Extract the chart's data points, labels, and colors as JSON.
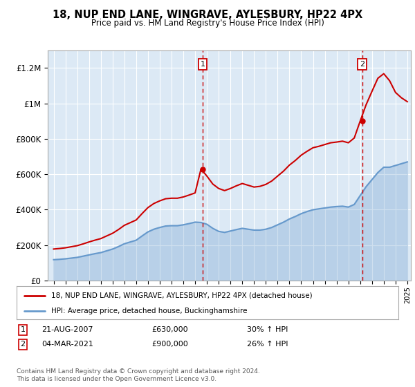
{
  "title": "18, NUP END LANE, WINGRAVE, AYLESBURY, HP22 4PX",
  "subtitle": "Price paid vs. HM Land Registry's House Price Index (HPI)",
  "x_start_year": 1995,
  "x_end_year": 2025,
  "y_min": 0,
  "y_max": 1300000,
  "y_ticks": [
    0,
    200000,
    400000,
    600000,
    800000,
    1000000,
    1200000
  ],
  "y_tick_labels": [
    "£0",
    "£200K",
    "£400K",
    "£600K",
    "£800K",
    "£1M",
    "£1.2M"
  ],
  "background_color": "#dce9f5",
  "grid_color": "#ffffff",
  "sale1_date": 2007.64,
  "sale1_price": 630000,
  "sale2_date": 2021.17,
  "sale2_price": 900000,
  "sale1_label": "1",
  "sale2_label": "2",
  "vline_color": "#cc0000",
  "red_line_color": "#cc0000",
  "blue_line_color": "#6699cc",
  "blue_fill_color": "#6699cc",
  "legend1_label": "18, NUP END LANE, WINGRAVE, AYLESBURY, HP22 4PX (detached house)",
  "legend2_label": "HPI: Average price, detached house, Buckinghamshire",
  "footer": "Contains HM Land Registry data © Crown copyright and database right 2024.\nThis data is licensed under the Open Government Licence v3.0.",
  "hpi_years": [
    1995,
    1995.5,
    1996,
    1996.5,
    1997,
    1997.5,
    1998,
    1998.5,
    1999,
    1999.5,
    2000,
    2000.5,
    2001,
    2001.5,
    2002,
    2002.5,
    2003,
    2003.5,
    2004,
    2004.5,
    2005,
    2005.5,
    2006,
    2006.5,
    2007,
    2007.5,
    2008,
    2008.5,
    2009,
    2009.5,
    2010,
    2010.5,
    2011,
    2011.5,
    2012,
    2012.5,
    2013,
    2013.5,
    2014,
    2014.5,
    2015,
    2015.5,
    2016,
    2016.5,
    2017,
    2017.5,
    2018,
    2018.5,
    2019,
    2019.5,
    2020,
    2020.5,
    2021,
    2021.5,
    2022,
    2022.5,
    2023,
    2023.5,
    2024,
    2024.5,
    2025
  ],
  "hpi_values": [
    118000,
    120000,
    123000,
    127000,
    131000,
    138000,
    145000,
    152000,
    158000,
    168000,
    178000,
    192000,
    208000,
    218000,
    228000,
    252000,
    275000,
    290000,
    300000,
    308000,
    310000,
    310000,
    315000,
    322000,
    330000,
    328000,
    318000,
    295000,
    278000,
    272000,
    280000,
    288000,
    295000,
    290000,
    285000,
    285000,
    290000,
    300000,
    315000,
    330000,
    348000,
    362000,
    378000,
    390000,
    400000,
    405000,
    410000,
    415000,
    418000,
    420000,
    415000,
    430000,
    480000,
    530000,
    570000,
    610000,
    640000,
    640000,
    650000,
    660000,
    670000
  ],
  "red_years": [
    1995,
    1995.5,
    1996,
    1996.5,
    1997,
    1997.5,
    1998,
    1998.5,
    1999,
    1999.5,
    2000,
    2000.5,
    2001,
    2001.5,
    2002,
    2002.5,
    2003,
    2003.5,
    2004,
    2004.5,
    2005,
    2005.5,
    2006,
    2006.5,
    2007,
    2007.5,
    2008,
    2008.5,
    2009,
    2009.5,
    2010,
    2010.5,
    2011,
    2011.5,
    2012,
    2012.5,
    2013,
    2013.5,
    2014,
    2014.5,
    2015,
    2015.5,
    2016,
    2016.5,
    2017,
    2017.5,
    2018,
    2018.5,
    2019,
    2019.5,
    2020,
    2020.5,
    2021,
    2021.5,
    2022,
    2022.5,
    2023,
    2023.5,
    2024,
    2024.5,
    2025
  ],
  "red_values": [
    178000,
    181000,
    185000,
    191000,
    197000,
    207000,
    218000,
    228000,
    237000,
    252000,
    267000,
    288000,
    312000,
    327000,
    342000,
    378000,
    412000,
    435000,
    450000,
    462000,
    465000,
    465000,
    472000,
    483000,
    495000,
    630000,
    590000,
    545000,
    520000,
    508000,
    520000,
    535000,
    548000,
    538000,
    528000,
    532000,
    543000,
    562000,
    590000,
    618000,
    652000,
    678000,
    708000,
    730000,
    750000,
    758000,
    768000,
    778000,
    782000,
    787000,
    778000,
    805000,
    900000,
    992000,
    1068000,
    1142000,
    1168000,
    1128000,
    1062000,
    1032000,
    1010000
  ]
}
